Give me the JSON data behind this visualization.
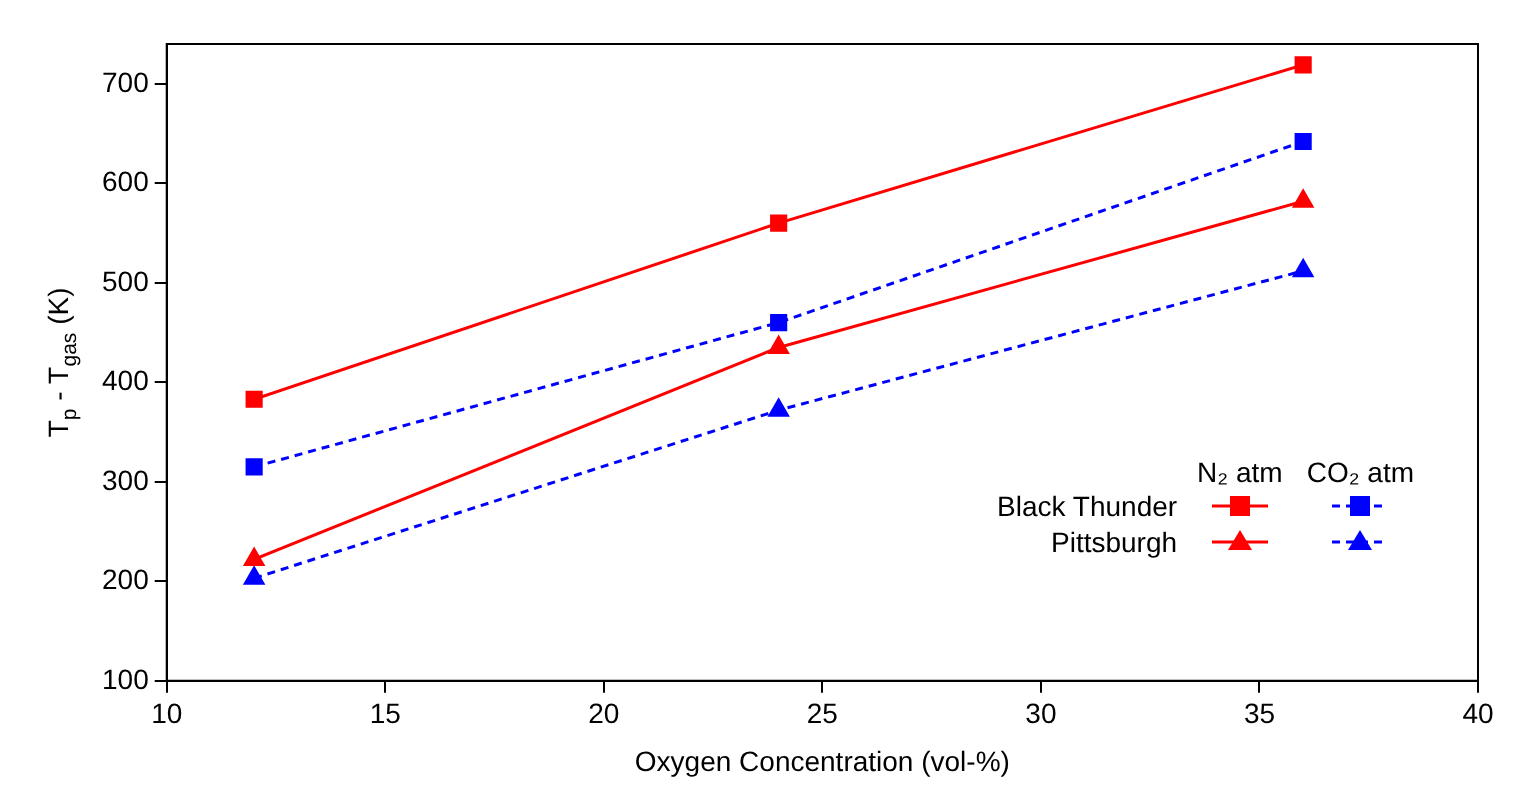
{
  "chart_data": {
    "type": "line",
    "xlabel": "Oxygen Concentration (vol-%)",
    "ylabel": "T$_{p}$ - T$_{gas}$ (K)",
    "x": [
      12,
      24,
      36
    ],
    "series": [
      {
        "name": "Black Thunder",
        "color": "#ff0000",
        "values": [
          383,
          560,
          719
        ],
        "marker": "square",
        "line_style": "solid"
      },
      {
        "color": "#0000ff",
        "values": [
          315,
          460,
          642
        ],
        "marker": "square",
        "line_style": "dashed"
      },
      {
        "name": "Pittsburgh",
        "color": "#ff0000",
        "values": [
          222,
          435,
          582
        ],
        "marker": "triangle",
        "line_style": "solid"
      },
      {
        "color": "#0000ff",
        "values": [
          203,
          372,
          512
        ],
        "marker": "triangle",
        "line_style": "dashed"
      }
    ],
    "annotations": [
      "N₂ atm",
      "CO₂ atm"
    ],
    "xlim": [
      10,
      40
    ],
    "xticks": [
      10,
      15,
      20,
      25,
      30,
      35,
      40
    ],
    "ylim": [
      100,
      740
    ],
    "yticks": [
      100,
      200,
      300,
      400,
      500,
      600,
      700
    ],
    "grid": false,
    "legend": "bottom right"
  }
}
